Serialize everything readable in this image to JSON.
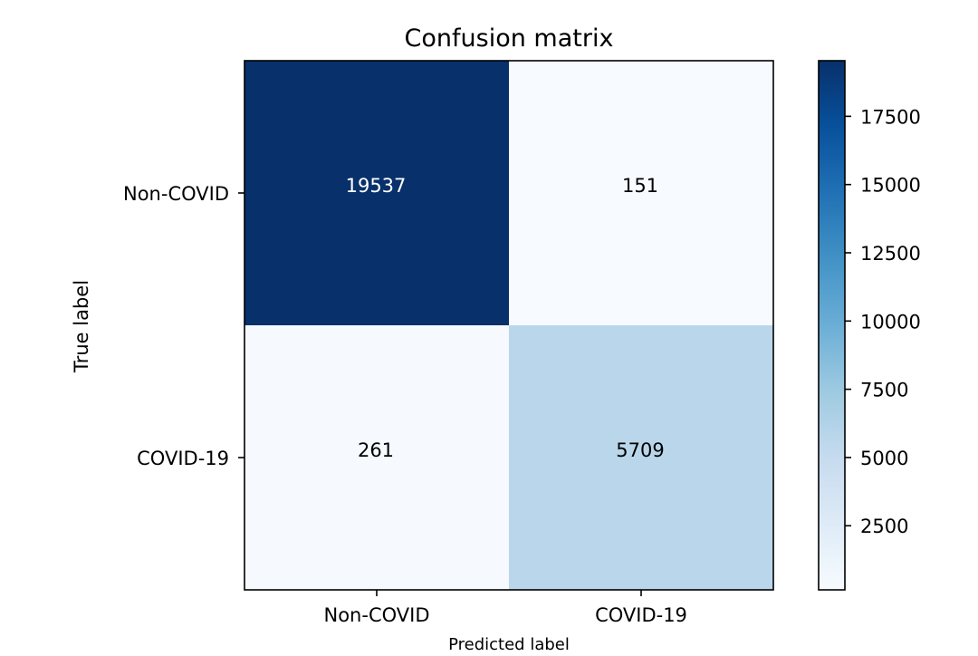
{
  "chart_data": {
    "type": "heatmap",
    "title": "Confusion matrix",
    "xlabel": "Predicted label",
    "ylabel": "True label",
    "x_categories": [
      "Non-COVID",
      "COVID-19"
    ],
    "y_categories": [
      "Non-COVID",
      "COVID-19"
    ],
    "values": [
      [
        19537,
        151
      ],
      [
        261,
        5709
      ]
    ],
    "colormap": "Blues",
    "colorbar": {
      "range": [
        151,
        19537
      ],
      "ticks": [
        2500,
        5000,
        7500,
        10000,
        12500,
        15000,
        17500
      ]
    },
    "grid": false
  }
}
